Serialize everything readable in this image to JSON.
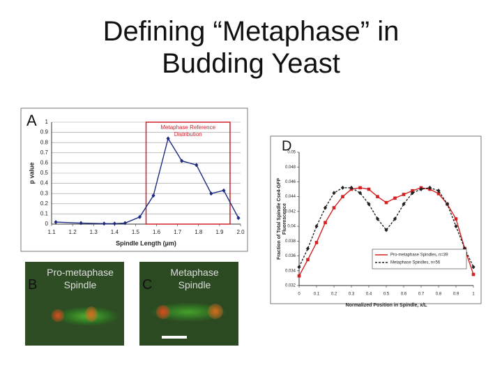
{
  "title": "Defining “Metaphase” in Budding Yeast",
  "chart_data": [
    {
      "type": "line",
      "label": "A",
      "xlabel": "Spindle Length (µm)",
      "ylabel": [
        "p value"
      ],
      "xlim": [
        1.1,
        2.0
      ],
      "xticks": [
        1.1,
        1.2,
        1.3,
        1.4,
        1.5,
        1.6,
        1.7,
        1.8,
        1.9,
        {
          "value": 2,
          "label": "2.0"
        }
      ],
      "ylim": [
        0,
        1
      ],
      "yticks": [
        0,
        0.1,
        0.2,
        0.3,
        0.4,
        0.5,
        0.6,
        0.7,
        0.8,
        0.9,
        1
      ],
      "grid": true,
      "highlight": [
        1.55,
        1.95
      ],
      "highlight_color": "#d0202a",
      "annotation": [
        "Metaphase Reference",
        "Distribution"
      ],
      "x": [
        1.12,
        1.24,
        1.35,
        1.4,
        1.45,
        1.52,
        1.585,
        1.655,
        1.72,
        1.79,
        1.86,
        1.92,
        1.99
      ],
      "series": [
        {
          "name": null,
          "color": "#1c2a80",
          "marker": "diamond",
          "dash": false,
          "values": [
            0.02,
            0.01,
            0.005,
            0.005,
            0.01,
            0.07,
            0.28,
            0.84,
            0.62,
            0.58,
            0.3,
            0.33,
            0.06
          ]
        }
      ]
    },
    {
      "type": "line",
      "label": "D",
      "xlabel": "Normalized Position in Spindle, x/L",
      "ylabel": [
        "Fraction of Total Spindle Cse4-GFP",
        "Fluorescence"
      ],
      "xlim": [
        0,
        1
      ],
      "xticks": [
        0,
        0.1,
        0.2,
        0.3,
        0.4,
        0.5,
        0.6,
        0.7,
        0.8,
        0.9,
        1
      ],
      "ylim": [
        0.032,
        0.05
      ],
      "yticks": [
        0.032,
        0.034,
        0.036,
        0.038,
        0.04,
        0.042,
        0.044,
        0.046,
        0.048,
        0.05
      ],
      "grid": false,
      "legend": "lower-right",
      "x": [
        0,
        0.05,
        0.1,
        0.15,
        0.2,
        0.25,
        0.3,
        0.35,
        0.4,
        0.45,
        0.5,
        0.55,
        0.6,
        0.65,
        0.7,
        0.75,
        0.8,
        0.85,
        0.9,
        0.95,
        1
      ],
      "series": [
        {
          "name": "Pro-metaphase Spindles, n=39",
          "color": "#d42020",
          "marker": "square",
          "dash": false,
          "values": [
            0.0333,
            0.0355,
            0.0378,
            0.0405,
            0.0425,
            0.044,
            0.045,
            0.0452,
            0.045,
            0.044,
            0.0432,
            0.0438,
            0.0443,
            0.0448,
            0.0452,
            0.045,
            0.0444,
            0.043,
            0.041,
            0.037,
            0.0335
          ]
        },
        {
          "name": "Metaphase Spindles, n=56",
          "color": "#222222",
          "marker": "diamond",
          "dash": true,
          "values": [
            0.0345,
            0.037,
            0.04,
            0.0425,
            0.0445,
            0.0452,
            0.0452,
            0.0445,
            0.043,
            0.041,
            0.0395,
            0.041,
            0.043,
            0.0445,
            0.045,
            0.0452,
            0.0448,
            0.043,
            0.04,
            0.037,
            0.0345
          ]
        }
      ]
    }
  ],
  "images": [
    {
      "label": "B",
      "caption": "Pro-metaphase Spindle"
    },
    {
      "label": "C",
      "caption": "Metaphase Spindle"
    }
  ]
}
